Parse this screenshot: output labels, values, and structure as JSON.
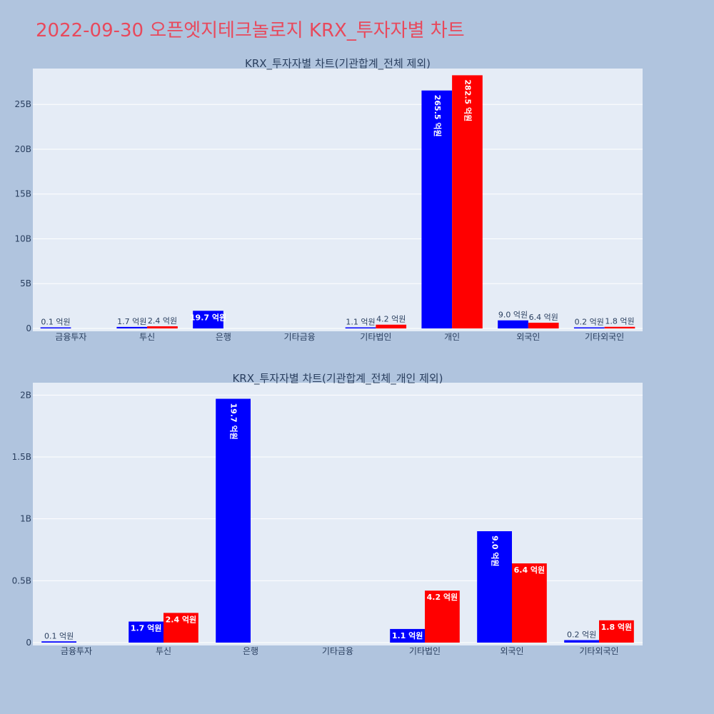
{
  "title": "2022-09-30 오픈엣지테크놀로지 KRX_투자자별 차트",
  "colors": {
    "buy": "#0000ff",
    "sell": "#ff0000",
    "plot_bg": "#e5ecf6",
    "page_bg": "#b0c4de"
  },
  "chart_data": [
    {
      "type": "bar",
      "title": "KRX_투자자별 차트(기관합계_전체 제외)",
      "categories": [
        "금융투자",
        "투신",
        "은행",
        "기타금융",
        "기타법인",
        "개인",
        "외국인",
        "기타외국인"
      ],
      "ylim": [
        0,
        29000000000
      ],
      "yticks": [
        0,
        5000000000,
        10000000000,
        15000000000,
        20000000000,
        25000000000
      ],
      "ytick_labels": [
        "0",
        "5B",
        "10B",
        "15B",
        "20B",
        "25B"
      ],
      "grid": true,
      "series": [
        {
          "color": "#0000ff",
          "values": [
            10000000,
            170000000,
            1970000000,
            0,
            110000000,
            26550000000,
            900000000,
            20000000
          ],
          "labels": [
            "0.1 억원",
            "1.7 억원",
            "19.7 억원",
            "",
            "1.1 억원",
            "265.5 억원",
            "9.0 억원",
            "0.2 억원"
          ]
        },
        {
          "color": "#ff0000",
          "values": [
            0,
            240000000,
            0,
            0,
            420000000,
            28250000000,
            640000000,
            180000000
          ],
          "labels": [
            "",
            "2.4 억원",
            "",
            "",
            "4.2 억원",
            "282.5 억원",
            "6.4 억원",
            "1.8 억원"
          ]
        }
      ]
    },
    {
      "type": "bar",
      "title": "KRX_투자자별 차트(기관합계_전체_개인 제외)",
      "categories": [
        "금융투자",
        "투신",
        "은행",
        "기타금융",
        "기타법인",
        "외국인",
        "기타외국인"
      ],
      "ylim": [
        0,
        2100000000
      ],
      "yticks": [
        0,
        500000000,
        1000000000,
        1500000000,
        2000000000
      ],
      "ytick_labels": [
        "0",
        "0.5B",
        "1B",
        "1.5B",
        "2B"
      ],
      "grid": true,
      "series": [
        {
          "color": "#0000ff",
          "values": [
            10000000,
            170000000,
            1970000000,
            0,
            110000000,
            900000000,
            20000000
          ],
          "labels": [
            "0.1 억원",
            "1.7 억원",
            "19.7 억원",
            "",
            "1.1 억원",
            "9.0 억원",
            "0.2 억원"
          ]
        },
        {
          "color": "#ff0000",
          "values": [
            0,
            240000000,
            0,
            0,
            420000000,
            640000000,
            180000000
          ],
          "labels": [
            "",
            "2.4 억원",
            "",
            "",
            "4.2 억원",
            "6.4 억원",
            "1.8 억원"
          ]
        }
      ]
    }
  ]
}
